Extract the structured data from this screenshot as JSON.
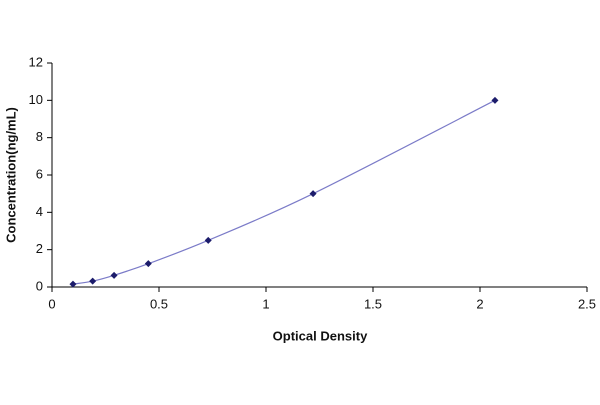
{
  "chart_data": {
    "type": "scatter",
    "x_label": "Optical Density",
    "y_label": "Concentration(ng/mL)",
    "series": [
      {
        "color": "#1c1c6b",
        "line_color": "#7b7bc8",
        "x": [
          0.098,
          0.19,
          0.29,
          0.45,
          0.73,
          1.22,
          2.07
        ],
        "values": [
          0.156,
          0.312,
          0.625,
          1.25,
          2.5,
          5,
          10
        ]
      }
    ],
    "xlim": [
      0,
      2.5
    ],
    "xticks": [
      0,
      0.5,
      1,
      1.5,
      2,
      2.5
    ],
    "ylim": [
      0,
      12
    ],
    "yticks": [
      0,
      2,
      4,
      6,
      8,
      10,
      12
    ],
    "grid": false
  }
}
